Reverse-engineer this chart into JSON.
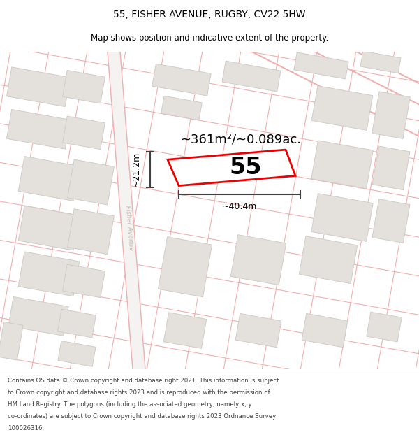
{
  "title": "55, FISHER AVENUE, RUGBY, CV22 5HW",
  "subtitle": "Map shows position and indicative extent of the property.",
  "area_text": "~361m²/~0.089ac.",
  "width_text": "~40.4m",
  "height_text": "~21.2m",
  "property_number": "55",
  "copyright_text": "Contains OS data © Crown copyright and database right 2021. This information is subject to Crown copyright and database rights 2023 and is reproduced with the permission of HM Land Registry. The polygons (including the associated geometry, namely x, y co-ordinates) are subject to Crown copyright and database rights 2023 Ordnance Survey 100026316.",
  "map_bg": "#f7f5f3",
  "road_line_color": "#f0b0b0",
  "block_color": "#e4e0dc",
  "block_edge_color": "#d0ccc8",
  "property_edge_color": "#ee0000",
  "dim_color": "#404040",
  "street_label_color": "#c0b8b0",
  "title_fontsize": 10,
  "subtitle_fontsize": 8.5,
  "number_fontsize": 24,
  "area_fontsize": 13,
  "dim_fontsize": 9,
  "copyright_fontsize": 6.2
}
